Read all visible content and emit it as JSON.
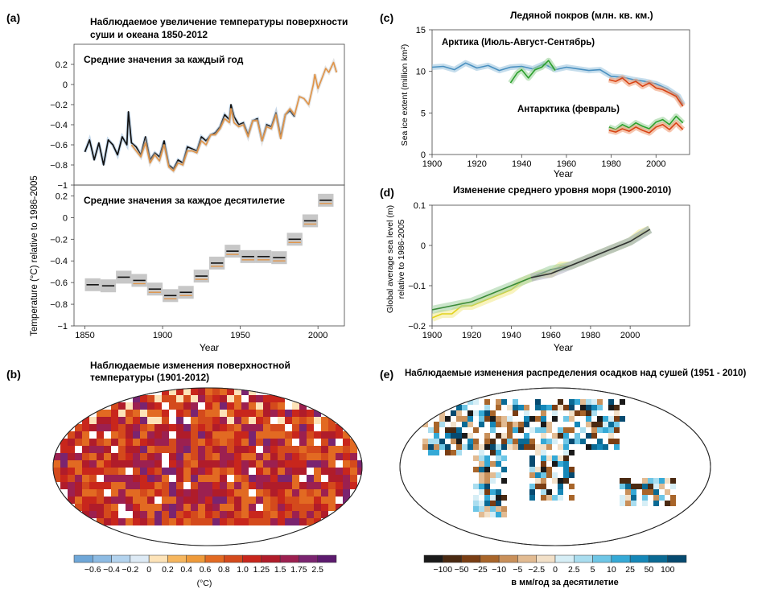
{
  "chart_data": [
    {
      "panel": "(a)",
      "type": "line",
      "title": "Наблюдаемое увеличение температуры поверхности суши и океана 1850-2012",
      "ylabel": "Temperature (°C) relative to 1986-2005",
      "xlabel": "Year",
      "subpanels": [
        {
          "label": "Средние значения за каждый год",
          "ylim": [
            -1,
            0.4
          ],
          "yticks": [
            "0.2",
            "0",
            "−0.2",
            "−0.4",
            "−0.6",
            "−0.8",
            "−1"
          ],
          "series": [
            {
              "color": "#111111",
              "x": [
                1850,
                1853,
                1856,
                1859,
                1862,
                1865,
                1868,
                1871,
                1874,
                1877,
                1878,
                1880,
                1883,
                1886,
                1889,
                1892,
                1895,
                1898,
                1901,
                1904,
                1907,
                1910,
                1913,
                1916,
                1919,
                1922,
                1925,
                1928,
                1931,
                1934,
                1937,
                1940,
                1943,
                1944,
                1946,
                1949,
                1952,
                1955,
                1958,
                1961,
                1964,
                1967,
                1970,
                1973,
                1976,
                1979,
                1982,
                1985
              ],
              "y": [
                -0.67,
                -0.55,
                -0.75,
                -0.58,
                -0.8,
                -0.55,
                -0.6,
                -0.7,
                -0.52,
                -0.6,
                -0.27,
                -0.58,
                -0.62,
                -0.7,
                -0.52,
                -0.75,
                -0.68,
                -0.72,
                -0.56,
                -0.8,
                -0.84,
                -0.75,
                -0.78,
                -0.62,
                -0.64,
                -0.66,
                -0.52,
                -0.56,
                -0.5,
                -0.48,
                -0.42,
                -0.3,
                -0.35,
                -0.2,
                -0.32,
                -0.4,
                -0.38,
                -0.5,
                -0.36,
                -0.34,
                -0.56,
                -0.4,
                -0.42,
                -0.28,
                -0.52,
                -0.3,
                -0.26,
                -0.32
              ]
            },
            {
              "color": "#e0954a",
              "x": [
                1880,
                1883,
                1886,
                1889,
                1892,
                1895,
                1898,
                1901,
                1904,
                1907,
                1910,
                1913,
                1916,
                1919,
                1922,
                1925,
                1928,
                1931,
                1934,
                1937,
                1940,
                1943,
                1944,
                1946,
                1949,
                1952,
                1955,
                1958,
                1961,
                1964,
                1967,
                1970,
                1973,
                1976,
                1979,
                1982,
                1985,
                1988,
                1991,
                1994,
                1997,
                1998,
                2000,
                2003,
                2005,
                2007,
                2010,
                2012
              ],
              "y": [
                -0.6,
                -0.66,
                -0.72,
                -0.58,
                -0.78,
                -0.7,
                -0.76,
                -0.6,
                -0.82,
                -0.86,
                -0.78,
                -0.8,
                -0.66,
                -0.66,
                -0.68,
                -0.56,
                -0.6,
                -0.5,
                -0.5,
                -0.44,
                -0.34,
                -0.38,
                -0.24,
                -0.38,
                -0.42,
                -0.4,
                -0.52,
                -0.36,
                -0.36,
                -0.56,
                -0.42,
                -0.44,
                -0.3,
                -0.54,
                -0.3,
                -0.24,
                -0.3,
                -0.12,
                -0.14,
                -0.2,
                0.0,
                0.1,
                -0.04,
                0.08,
                0.16,
                0.12,
                0.22,
                0.12
              ]
            }
          ]
        },
        {
          "label": "Средние значения за каждое десятилетие",
          "ylim": [
            -1,
            0.3
          ],
          "yticks": [
            "0.2",
            "0",
            "−0.2",
            "−0.4",
            "−0.6",
            "−0.8",
            "−1"
          ],
          "decades": [
            {
              "start": 1850,
              "value": -0.62
            },
            {
              "start": 1860,
              "value": -0.63
            },
            {
              "start": 1870,
              "value": -0.55
            },
            {
              "start": 1880,
              "value": -0.58
            },
            {
              "start": 1890,
              "value": -0.66
            },
            {
              "start": 1900,
              "value": -0.72
            },
            {
              "start": 1910,
              "value": -0.69
            },
            {
              "start": 1920,
              "value": -0.54
            },
            {
              "start": 1930,
              "value": -0.42
            },
            {
              "start": 1940,
              "value": -0.31
            },
            {
              "start": 1950,
              "value": -0.36
            },
            {
              "start": 1960,
              "value": -0.36
            },
            {
              "start": 1970,
              "value": -0.37
            },
            {
              "start": 1980,
              "value": -0.2
            },
            {
              "start": 1990,
              "value": -0.03
            },
            {
              "start": 2000,
              "value": 0.16
            }
          ]
        }
      ],
      "xticks": [
        "1850",
        "1900",
        "1950",
        "2000"
      ],
      "xlim": [
        1843,
        2017
      ]
    },
    {
      "panel": "(c)",
      "type": "line",
      "title": "Ледяной покров (млн. кв. км.)",
      "ylabel": "Sea ice extent (million km²)",
      "xlabel": "Year",
      "ylim": [
        0,
        15
      ],
      "yticks": [
        "15",
        "10",
        "5",
        "0"
      ],
      "xlim": [
        1900,
        2015
      ],
      "xticks": [
        "1900",
        "1920",
        "1940",
        "1960",
        "1980",
        "2000"
      ],
      "annotations": [
        "Арктика (Июль-Август-Сентябрь)",
        "Антарктика (февраль)"
      ],
      "series": [
        {
          "color": "#4a90c0",
          "x": [
            1900,
            1905,
            1910,
            1915,
            1920,
            1925,
            1930,
            1935,
            1940,
            1945,
            1950,
            1955,
            1960,
            1965,
            1970,
            1975,
            1980,
            1985,
            1990,
            1995,
            2000,
            2005,
            2010,
            2012
          ],
          "y": [
            10.5,
            10.6,
            10.2,
            11.0,
            10.4,
            10.7,
            10.1,
            10.5,
            10.6,
            10.3,
            10.9,
            10.2,
            10.5,
            10.3,
            10.1,
            10.2,
            9.4,
            9.3,
            9.0,
            8.8,
            8.5,
            7.9,
            7.0,
            6.0
          ]
        },
        {
          "color": "#2ca02c",
          "x": [
            1935,
            1938,
            1940,
            1943,
            1946,
            1949,
            1952,
            1955
          ],
          "y": [
            8.6,
            9.8,
            10.2,
            9.2,
            10.2,
            10.5,
            11.3,
            10.1
          ]
        },
        {
          "color": "#d84315",
          "x": [
            1979,
            1982,
            1985,
            1988,
            1991,
            1994,
            1997,
            2000,
            2003,
            2006,
            2009,
            2012
          ],
          "y": [
            9.0,
            8.8,
            9.2,
            8.5,
            8.8,
            8.2,
            8.6,
            8.0,
            7.8,
            7.4,
            7.0,
            5.8
          ]
        },
        {
          "color": "#2ca02c",
          "x": [
            1979,
            1982,
            1985,
            1988,
            1991,
            1994,
            1997,
            2000,
            2003,
            2006,
            2009,
            2012
          ],
          "y": [
            3.3,
            3.0,
            3.6,
            3.2,
            3.8,
            3.4,
            3.1,
            3.9,
            4.2,
            3.6,
            4.6,
            3.8
          ]
        },
        {
          "color": "#d84315",
          "x": [
            1979,
            1982,
            1985,
            1988,
            1991,
            1994,
            1997,
            2000,
            2003,
            2006,
            2009,
            2012
          ],
          "y": [
            2.9,
            2.7,
            3.1,
            2.8,
            3.3,
            2.9,
            2.6,
            3.3,
            3.6,
            3.0,
            3.8,
            3.0
          ]
        }
      ]
    },
    {
      "panel": "(d)",
      "type": "line",
      "title": "Изменение среднего уровня моря (1900-2010)",
      "ylabel": "Global average sea level (m) relative to 1986-2005",
      "xlabel": "Year",
      "ylim": [
        -0.2,
        0.1
      ],
      "yticks": [
        "0.1",
        "0",
        "−0.1",
        "−0.2"
      ],
      "xlim": [
        1900,
        2030
      ],
      "xticks": [
        "1900",
        "1920",
        "1940",
        "1960",
        "1980",
        "2000"
      ],
      "series": [
        {
          "color": "#e2d21c",
          "x": [
            1900,
            1905,
            1910,
            1915,
            1920,
            1925,
            1930,
            1935,
            1940,
            1945,
            1950,
            1955,
            1960,
            1965,
            1970,
            1975,
            1980,
            1985,
            1990,
            1995,
            2000,
            2005,
            2010
          ],
          "y": [
            -0.18,
            -0.17,
            -0.17,
            -0.15,
            -0.15,
            -0.14,
            -0.13,
            -0.12,
            -0.11,
            -0.09,
            -0.08,
            -0.07,
            -0.07,
            -0.05,
            -0.05,
            -0.04,
            -0.03,
            -0.02,
            -0.01,
            0.0,
            0.01,
            0.03,
            0.04
          ]
        },
        {
          "color": "#3a8a3a",
          "x": [
            1900,
            1910,
            1920,
            1930,
            1940,
            1950,
            1960,
            1970,
            1980,
            1990,
            2000,
            2010
          ],
          "y": [
            -0.16,
            -0.15,
            -0.14,
            -0.12,
            -0.1,
            -0.08,
            -0.06,
            -0.05,
            -0.03,
            -0.01,
            0.01,
            0.04
          ]
        },
        {
          "color": "#333333",
          "x": [
            1950,
            1960,
            1970,
            1980,
            1990,
            2000,
            2010
          ],
          "y": [
            -0.08,
            -0.07,
            -0.05,
            -0.03,
            -0.01,
            0.01,
            0.04
          ]
        }
      ]
    },
    {
      "panel": "(b)",
      "type": "heatmap",
      "title": "Наблюдаемые изменения поверхностной температуры (1901-2012)",
      "colorbar_unit": "(°C)",
      "colorbar_ticks": [
        "−0.6",
        "−0.4",
        "−0.2",
        "0",
        "0.2",
        "0.4",
        "0.6",
        "0.8",
        "1.0",
        "1.25",
        "1.5",
        "1.75",
        "2.5"
      ],
      "colorbar_colors": [
        "#6fa7d8",
        "#8dbbe3",
        "#b3d3ee",
        "#ddeaf5",
        "#fde3b8",
        "#f6b65e",
        "#ee9a3a",
        "#e26a22",
        "#d44a1c",
        "#c8261c",
        "#b01c2a",
        "#9c2050",
        "#7a2470",
        "#5c1a6e"
      ]
    },
    {
      "panel": "(e)",
      "type": "heatmap",
      "title": "Наблюдаемые изменения распределения осадков над сушей (1951 - 2010)",
      "colorbar_unit": "в мм/год за десятилетие",
      "colorbar_ticks": [
        "−100",
        "−50",
        "−25",
        "−10",
        "−5",
        "−2.5",
        "0",
        "2.5",
        "5",
        "10",
        "25",
        "50",
        "100"
      ],
      "colorbar_colors": [
        "#1a1a1a",
        "#4a2a12",
        "#7a3e14",
        "#a8652a",
        "#c9905a",
        "#e2bb92",
        "#f2e0c8",
        "#d6eef6",
        "#a9ddef",
        "#6ec6e6",
        "#35a9d6",
        "#1587b8",
        "#0a6a94",
        "#064a70"
      ]
    }
  ],
  "panel_labels": {
    "a": "(a)",
    "b": "(b)",
    "c": "(c)",
    "d": "(d)",
    "e": "(e)"
  }
}
